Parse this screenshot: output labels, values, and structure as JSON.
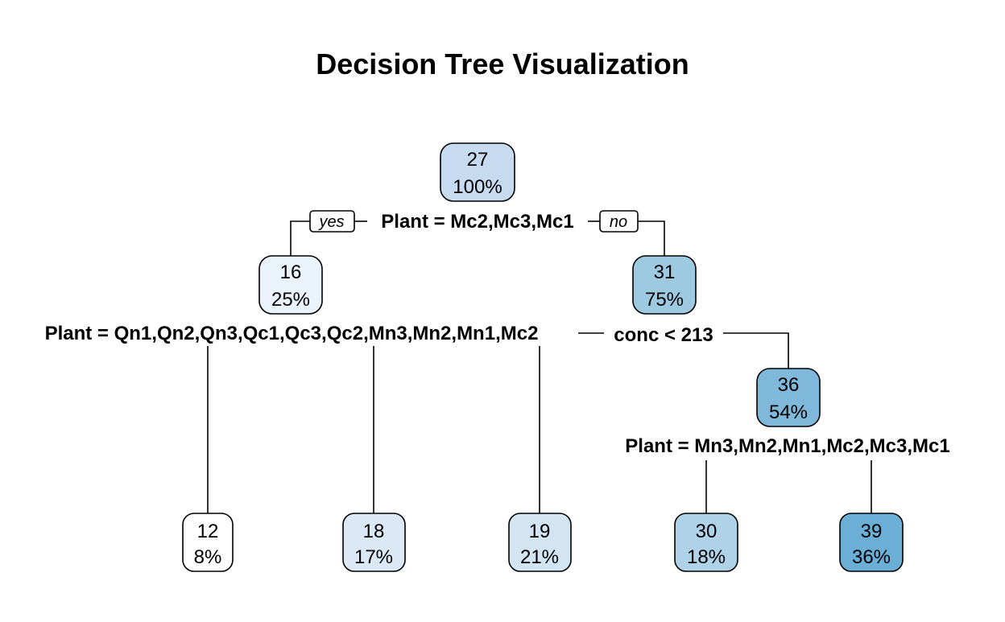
{
  "title": "Decision Tree Visualization",
  "colors": {
    "n_100": "#c6dbef",
    "n_25": "#eaf2fb",
    "n_75": "#9ecae1",
    "n_54": "#7fb8da",
    "n_8": "#ffffff",
    "n_17": "#dbe9f6",
    "n_21": "#d3e4f3",
    "n_18": "#b0d2e8",
    "n_36": "#6baed6"
  },
  "labels": {
    "yes": "yes",
    "no": "no"
  },
  "splits": {
    "root": "Plant = Mc2,Mc3,Mc1",
    "left": "Plant = Qn1,Qn2,Qn3,Qc1,Qc3,Qc2,Mn3,Mn2,Mn1,Mc2",
    "right": "conc < 213",
    "rightright": "Plant = Mn3,Mn2,Mn1,Mc2,Mc3,Mc1"
  },
  "nodes": {
    "root": {
      "value": "27",
      "pct": "100%"
    },
    "left": {
      "value": "16",
      "pct": "25%"
    },
    "right": {
      "value": "31",
      "pct": "75%"
    },
    "rr": {
      "value": "36",
      "pct": "54%"
    },
    "leaf1": {
      "value": "12",
      "pct": "8%"
    },
    "leaf2": {
      "value": "18",
      "pct": "17%"
    },
    "leaf3": {
      "value": "19",
      "pct": "21%"
    },
    "leaf4": {
      "value": "30",
      "pct": "18%"
    },
    "leaf5": {
      "value": "39",
      "pct": "36%"
    }
  }
}
